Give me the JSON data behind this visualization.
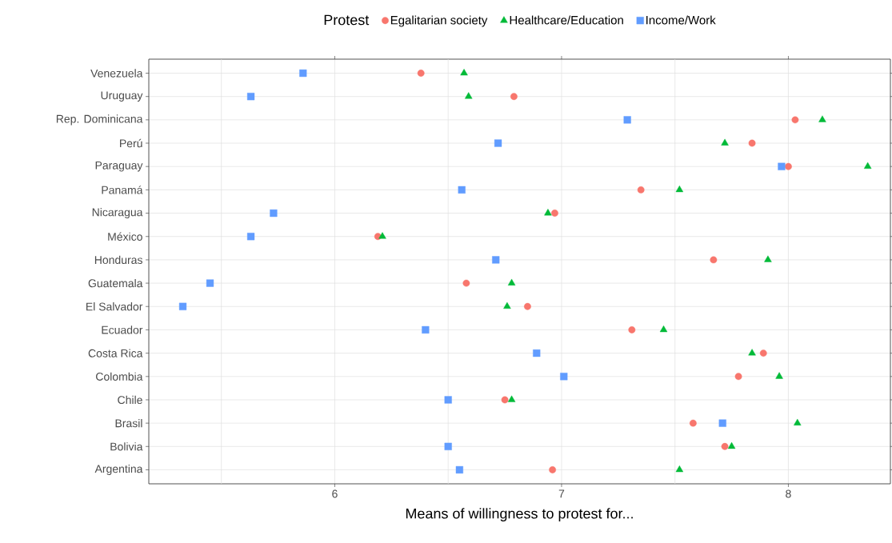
{
  "chart_data": {
    "type": "scatter",
    "categories": [
      "Venezuela",
      "Uruguay",
      "Rep. Dominicana",
      "Perú",
      "Paraguay",
      "Panamá",
      "Nicaragua",
      "México",
      "Honduras",
      "Guatemala",
      "El Salvador",
      "Ecuador",
      "Costa Rica",
      "Colombia",
      "Chile",
      "Brasil",
      "Bolivia",
      "Argentina"
    ],
    "orientation": "horizontal",
    "series": [
      {
        "name": "Egalitarian society",
        "color": "#F8766D",
        "marker": "circle",
        "values": [
          6.38,
          6.79,
          8.03,
          7.84,
          8.0,
          7.35,
          6.97,
          6.19,
          7.67,
          6.58,
          6.85,
          7.31,
          7.89,
          7.78,
          6.75,
          7.58,
          7.72,
          6.96
        ]
      },
      {
        "name": "Healthcare/Education",
        "color": "#00BA38",
        "marker": "triangle",
        "values": [
          6.57,
          6.59,
          8.15,
          7.72,
          8.35,
          7.52,
          6.94,
          6.21,
          7.91,
          6.78,
          6.76,
          7.45,
          7.84,
          7.96,
          6.78,
          8.04,
          7.75,
          7.52
        ]
      },
      {
        "name": "Income/Work",
        "color": "#619CFF",
        "marker": "square",
        "values": [
          5.86,
          5.63,
          7.29,
          6.72,
          7.97,
          6.56,
          5.73,
          5.63,
          6.71,
          5.45,
          5.33,
          6.4,
          6.89,
          7.01,
          6.5,
          7.71,
          6.5,
          6.55
        ]
      }
    ],
    "xlabel": "Means of willingness to protest for...",
    "legend_title": "Protest",
    "legend": "top",
    "xlim": [
      5.18,
      8.45
    ],
    "xticks": [
      {
        "value": 5.5,
        "label": null
      },
      6,
      {
        "value": 6.5,
        "label": null
      },
      7,
      {
        "value": 7.5,
        "label": null
      },
      8
    ],
    "grid": true
  }
}
